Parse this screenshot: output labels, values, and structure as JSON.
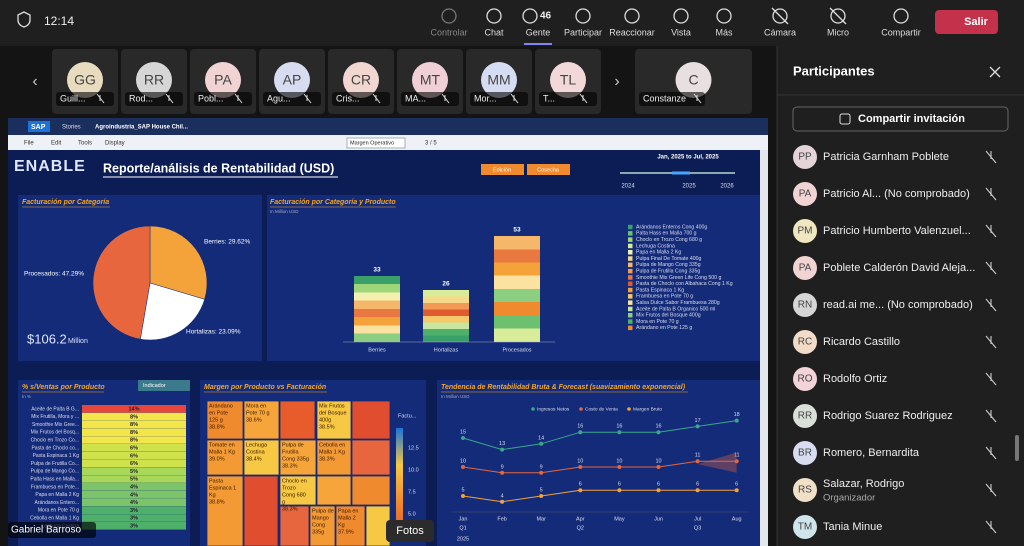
{
  "toolbar": {
    "time": "12:14",
    "buttons": [
      {
        "label": "Controlar"
      },
      {
        "label": "Chat"
      },
      {
        "label": "Gente",
        "count": "46"
      },
      {
        "label": "Participar"
      },
      {
        "label": "Reaccionar"
      },
      {
        "label": "Vista"
      },
      {
        "label": "Más"
      },
      {
        "label": "Cámara"
      },
      {
        "label": "Micro"
      },
      {
        "label": "Compartir"
      }
    ],
    "leave": "Salir"
  },
  "video_tiles": [
    {
      "initials": "GG",
      "name": "Guill..."
    },
    {
      "initials": "RR",
      "name": "Rod..."
    },
    {
      "initials": "PA",
      "name": "Pobl..."
    },
    {
      "initials": "AP",
      "name": "Agu..."
    },
    {
      "initials": "CR",
      "name": "Cris..."
    },
    {
      "initials": "MT",
      "name": "MA..."
    },
    {
      "initials": "MM",
      "name": "Mor..."
    },
    {
      "initials": "TL",
      "name": "T..."
    },
    {
      "initials": "C",
      "name": "Constanze"
    }
  ],
  "shared_screen": {
    "app_bar": {
      "logo": "SAP",
      "section": "Stories",
      "story": "Agroindustria_SAP House Chil..."
    },
    "menu": [
      "File",
      "Edit",
      "Tools",
      "Display"
    ],
    "dropdown": "Margen Operativo",
    "pager": "3 / 5",
    "brand": "ENABLE",
    "report_title": "Reporte/análisis de Rentabilidad (USD)",
    "buttons": [
      "Edición",
      "Cosecha"
    ],
    "date_range": "Jan, 2025 to Jul, 2025",
    "years": [
      "2024",
      "2025",
      "2026"
    ],
    "pie": {
      "title": "Facturación por Categoría",
      "total": "$106.2",
      "total_unit": "Million",
      "slices": [
        {
          "value": 29.62,
          "label": "Berries: 29.62%",
          "color": "#f4a23a"
        },
        {
          "value": 23.09,
          "label": "Hortalizas: 23.09%",
          "color": "#ffffff"
        },
        {
          "value": 47.29,
          "label": "Procesados: 47.29%",
          "color": "#e8663d"
        }
      ]
    },
    "bars": {
      "title": "Facturación por Categoría y Producto",
      "subtitle": "In Million USD",
      "categories": [
        "Berries",
        "Hortalizas",
        "Procesados"
      ],
      "values": [
        33,
        26,
        53
      ],
      "ylim": [
        0,
        55
      ],
      "legend": [
        {
          "name": "Arándanos Enteros Cong 400g",
          "color": "#3aa06a"
        },
        {
          "name": "Palta Hass en Malla 700 g",
          "color": "#6cc070"
        },
        {
          "name": "Choclo en Trozo Cong 680 g",
          "color": "#9fd67a"
        },
        {
          "name": "Lechuga Costina",
          "color": "#d8ec9a"
        },
        {
          "name": "Papa en Malla 2 Kg",
          "color": "#f4f0b0"
        },
        {
          "name": "Pulpa Final De Tomate 400g",
          "color": "#f7d98a"
        },
        {
          "name": "Pulpa de Mango Cong 335g",
          "color": "#f5b86a"
        },
        {
          "name": "Pulpa de Frutilla Cong 335g",
          "color": "#f09a55"
        },
        {
          "name": "Smoothie Mix Green Life Cong 500 g",
          "color": "#e8783f"
        },
        {
          "name": "Pasta de Choclo con Albahaca Cong 1 Kg",
          "color": "#e05a30"
        },
        {
          "name": "Pasta Espinaca 1 Kg",
          "color": "#f4a23a"
        },
        {
          "name": "Frambuesa en Pote 70 g",
          "color": "#f7c86a"
        },
        {
          "name": "Salsa Dulce Sabor Frambuesa 280g",
          "color": "#fbe2a0"
        },
        {
          "name": "Aceite de Palta B Organico 500 ml",
          "color": "#c8e6a0"
        },
        {
          "name": "Mix Frutos del Bosque 400g",
          "color": "#8ccf80"
        },
        {
          "name": "Mora en Pote 70 g",
          "color": "#4fb06c"
        },
        {
          "name": "Arándano en Pote 125 g",
          "color": "#f08a2e"
        }
      ]
    },
    "heatmap": {
      "title": "% s/Ventas por Producto",
      "filter": "Indicador",
      "unit": "In %",
      "rows": [
        {
          "name": "Aceite de Palta B G...",
          "value": 14,
          "value_label": "14%"
        },
        {
          "name": "Mix Frutilla, Mora y ...",
          "value": 8,
          "value_label": "8%"
        },
        {
          "name": "Smoothie Mix Gree...",
          "value": 8,
          "value_label": "8%"
        },
        {
          "name": "Mix Frutos del Bosq...",
          "value": 8,
          "value_label": "8%"
        },
        {
          "name": "Choclo en Trozo Co...",
          "value": 8,
          "value_label": "8%"
        },
        {
          "name": "Pasta de Choclo co...",
          "value": 6,
          "value_label": "6%"
        },
        {
          "name": "Pasta Espinaca 1 Kg",
          "value": 6,
          "value_label": "6%"
        },
        {
          "name": "Pulpa de Frutilla Co...",
          "value": 6,
          "value_label": "6%"
        },
        {
          "name": "Pulpa de Mango Co...",
          "value": 5,
          "value_label": "5%"
        },
        {
          "name": "Palta Hass en Malla...",
          "value": 5,
          "value_label": "5%"
        },
        {
          "name": "Frambuesa en Pote...",
          "value": 4,
          "value_label": "4%"
        },
        {
          "name": "Papa en Malla 2 Kg",
          "value": 4,
          "value_label": "4%"
        },
        {
          "name": "Arándanos Entero...",
          "value": 4,
          "value_label": "4%"
        },
        {
          "name": "Mora en Pote 70 g",
          "value": 3,
          "value_label": "3%"
        },
        {
          "name": "Cebolla en Malla 1 Kg",
          "value": 3,
          "value_label": "3%"
        },
        {
          "name": "Lechuga Costina",
          "value": 3,
          "value_label": "3%"
        }
      ]
    },
    "treemap": {
      "title": "Margen por Producto vs Facturación",
      "legend_title": "Factu...",
      "legend_ticks": [
        "12.5",
        "10.0",
        "7.5",
        "5.0"
      ],
      "cells": [
        {
          "lines": [
            "Arándano",
            "en Pote",
            "125 g",
            "38.8%"
          ],
          "color": "#f08a2e"
        },
        {
          "lines": [
            "Mora en",
            "Pote 70 g",
            "38.6%"
          ],
          "color": "#f5a53a"
        },
        {
          "lines": [
            "Mix Frutos",
            "del Bosque",
            "400g",
            "38.5%"
          ],
          "color": "#f7c843"
        },
        {
          "lines": [
            "Tomate en",
            "Malla 1 Kg",
            "39.0%"
          ],
          "color": "#f39a34"
        },
        {
          "lines": [
            "Lechuga",
            "Costina",
            "38.4%"
          ],
          "color": "#f7c843"
        },
        {
          "lines": [
            "Pulpa de",
            "Frutilla",
            "Cong 335g",
            "38.3%"
          ],
          "color": "#f5a53a"
        },
        {
          "lines": [
            "Cebolla en",
            "Malla 1 Kg",
            "38.3%"
          ],
          "color": "#f39a34"
        },
        {
          "lines": [
            "Pasta",
            "Espinaca 1",
            "Kg",
            "38.8%"
          ],
          "color": "#f39a34"
        },
        {
          "lines": [
            "Choclo en",
            "Trozo",
            "Cong 680",
            "g",
            "38.3%"
          ],
          "color": "#f7c843"
        },
        {
          "lines": [
            "Pulpa de",
            "Mango",
            "Cong",
            "335g"
          ],
          "color": "#f39a34"
        },
        {
          "lines": [
            "Papa en",
            "Malla 2",
            "Kg",
            "37.9%"
          ],
          "color": "#f08a2e"
        }
      ]
    },
    "line": {
      "title": "Tendencia de Rentabilidad Bruta & Forecast (suavizamiento exponencial)",
      "subtitle": "In Million USD",
      "categories": [
        "Jan",
        "Feb",
        "Mar",
        "Apr",
        "May",
        "Jun",
        "Jul",
        "Aug"
      ],
      "quarters": [
        "Q1",
        "Q2",
        "Q3"
      ],
      "year": "2025",
      "ylim": [
        0,
        20
      ],
      "series": [
        {
          "name": "Ingresos Netos",
          "color": "#3aa88a",
          "values": [
            15,
            13,
            14,
            16,
            16,
            16,
            17,
            18
          ]
        },
        {
          "name": "Costo de Venta",
          "color": "#e8663d",
          "values": [
            10,
            9,
            9,
            10,
            10,
            10,
            11,
            11
          ]
        },
        {
          "name": "Margen Bruto",
          "color": "#f4a23a",
          "values": [
            5,
            4,
            5,
            6,
            6,
            6,
            6,
            6
          ]
        }
      ]
    }
  },
  "presenter": "Gabriel Barroso",
  "photos_button": "Fotos",
  "participants_panel": {
    "title": "Participantes",
    "invite": "Compartir invitación",
    "people": [
      {
        "initials": "PP",
        "name": "Patricia Garnham Poblete"
      },
      {
        "initials": "PA",
        "name": "Patricio Al...   (No comprobado)"
      },
      {
        "initials": "PM",
        "name": "Patricio Humberto Valenzuel..."
      },
      {
        "initials": "PA",
        "name": "Poblete Calderón David Aleja..."
      },
      {
        "initials": "RN",
        "name": "read.ai me...   (No comprobado)"
      },
      {
        "initials": "RC",
        "name": "Ricardo Castillo"
      },
      {
        "initials": "RO",
        "name": "Rodolfo Ortiz"
      },
      {
        "initials": "RR",
        "name": "Rodrigo Suarez Rodriguez"
      },
      {
        "initials": "BR",
        "name": "Romero, Bernardita"
      },
      {
        "initials": "RS",
        "name": "Salazar, Rodrigo",
        "role": "Organizador"
      },
      {
        "initials": "TM",
        "name": "Tania Minue"
      }
    ]
  }
}
